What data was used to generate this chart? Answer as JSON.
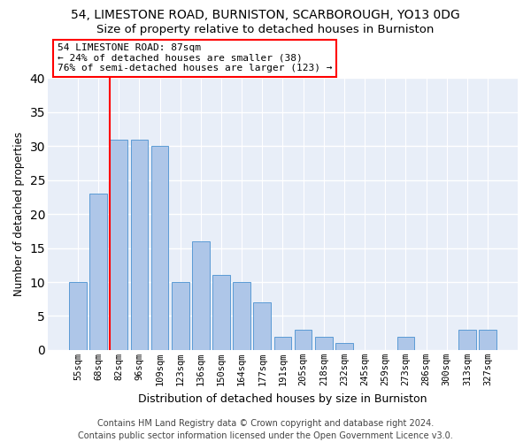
{
  "title": "54, LIMESTONE ROAD, BURNISTON, SCARBOROUGH, YO13 0DG",
  "subtitle": "Size of property relative to detached houses in Burniston",
  "xlabel": "Distribution of detached houses by size in Burniston",
  "ylabel": "Number of detached properties",
  "categories": [
    "55sqm",
    "68sqm",
    "82sqm",
    "96sqm",
    "109sqm",
    "123sqm",
    "136sqm",
    "150sqm",
    "164sqm",
    "177sqm",
    "191sqm",
    "205sqm",
    "218sqm",
    "232sqm",
    "245sqm",
    "259sqm",
    "273sqm",
    "286sqm",
    "300sqm",
    "313sqm",
    "327sqm"
  ],
  "values": [
    10,
    23,
    31,
    31,
    30,
    10,
    16,
    11,
    10,
    7,
    2,
    3,
    2,
    1,
    0,
    0,
    2,
    0,
    0,
    3,
    3
  ],
  "bar_color": "#aec6e8",
  "bar_edge_color": "#5b9bd5",
  "vline_x_index": 2,
  "vline_color": "red",
  "annotation_text": "54 LIMESTONE ROAD: 87sqm\n← 24% of detached houses are smaller (38)\n76% of semi-detached houses are larger (123) →",
  "annotation_box_color": "white",
  "annotation_box_edge": "red",
  "ylim": [
    0,
    40
  ],
  "yticks": [
    0,
    5,
    10,
    15,
    20,
    25,
    30,
    35,
    40
  ],
  "footer": "Contains HM Land Registry data © Crown copyright and database right 2024.\nContains public sector information licensed under the Open Government Licence v3.0.",
  "fig_bg_color": "#ffffff",
  "bg_color": "#e8eef8",
  "grid_color": "#ffffff",
  "title_fontsize": 10,
  "subtitle_fontsize": 9.5,
  "xlabel_fontsize": 9,
  "ylabel_fontsize": 8.5,
  "tick_fontsize": 7.5,
  "annotation_fontsize": 8,
  "footer_fontsize": 7
}
